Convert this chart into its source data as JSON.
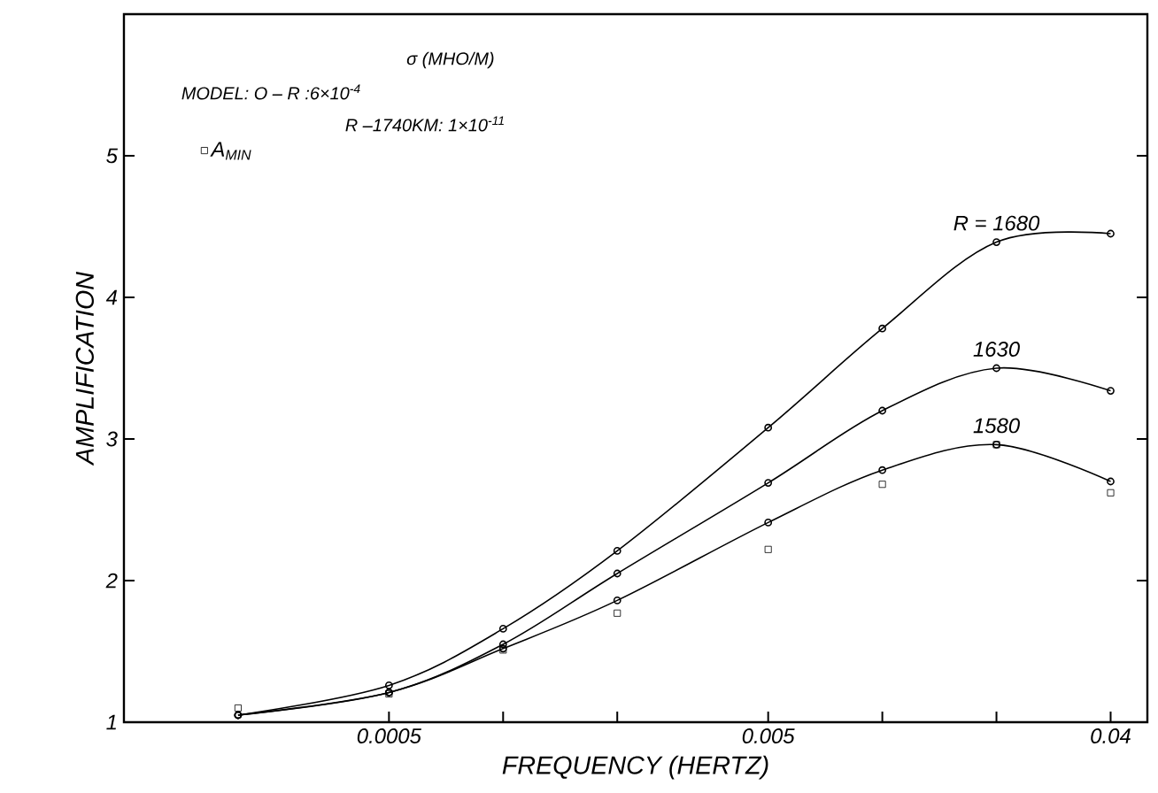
{
  "chart_data": {
    "type": "line",
    "xlabel": "FREQUENCY (HERTZ)",
    "ylabel": "AMPLIFICATION",
    "log": "x",
    "x": [
      0.0002,
      0.0005,
      0.001,
      0.002,
      0.005,
      0.01,
      0.02,
      0.04
    ],
    "xlim": [
      0.0001,
      0.05
    ],
    "xticks": [
      {
        "value": 0.0005,
        "label": "0.0005"
      },
      {
        "value": 0.001,
        "label": null
      },
      {
        "value": 0.002,
        "label": null
      },
      {
        "value": 0.005,
        "label": "0.005"
      },
      {
        "value": 0.01,
        "label": null
      },
      {
        "value": 0.02,
        "label": null
      },
      {
        "value": 0.04,
        "label": "0.04"
      }
    ],
    "ylim": [
      1,
      6
    ],
    "yticks": [
      1,
      2,
      3,
      4,
      5
    ],
    "grid": false,
    "legend": "top left",
    "line_style": "solid",
    "series": [
      {
        "name": "R = 1680",
        "marker": "circle",
        "color": "#000000",
        "values": [
          1.05,
          1.26,
          1.66,
          2.21,
          3.08,
          3.78,
          4.39,
          4.45
        ]
      },
      {
        "name": "1630",
        "marker": "circle",
        "color": "#000000",
        "values": [
          1.05,
          1.21,
          1.55,
          2.05,
          2.69,
          3.2,
          3.5,
          3.34
        ]
      },
      {
        "name": "1580",
        "marker": "circle",
        "color": "#000000",
        "values": [
          1.05,
          1.21,
          1.52,
          1.86,
          2.41,
          2.78,
          2.96,
          2.7
        ]
      },
      {
        "name": "A$_{MIN}$",
        "type": "scatter",
        "marker": "square",
        "color": "#000000",
        "values": [
          1.1,
          1.2,
          1.51,
          1.77,
          2.22,
          2.68,
          2.96,
          2.62
        ]
      }
    ],
    "annotations": [
      "σ (MHO/M)",
      "MODEL:   O – R          :6×10$^{-4}$",
      "R –1740KM: 1×10$^{-11}$"
    ]
  }
}
